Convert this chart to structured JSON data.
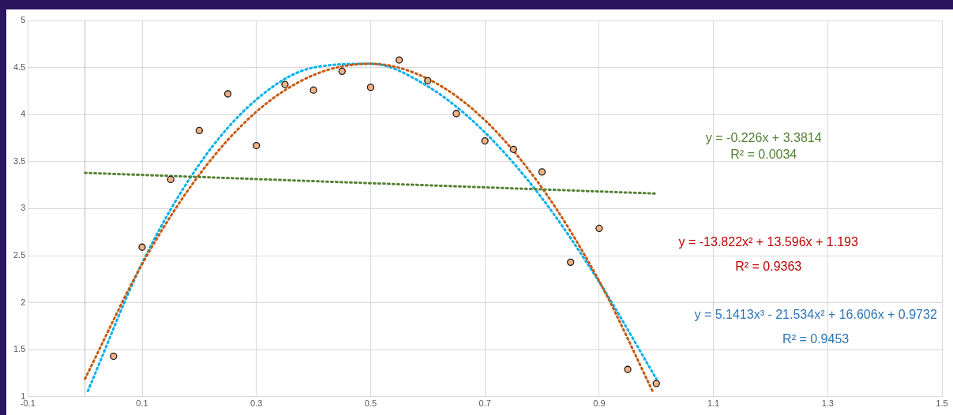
{
  "chart_data": {
    "type": "scatter",
    "xlim": [
      -0.1,
      1.5
    ],
    "xticks": [
      -0.1,
      0.1,
      0.3,
      0.5,
      0.7,
      0.9,
      1.1,
      1.3,
      1.5
    ],
    "ylim": [
      1,
      5
    ],
    "yticks": [
      1,
      1.5,
      2,
      2.5,
      3,
      3.5,
      4,
      4.5,
      5
    ],
    "grid": true,
    "legend": false,
    "marker": "circle",
    "ref_lines": [
      {
        "axis": "x",
        "value": 0,
        "color": "#c8c8c8"
      }
    ],
    "series": [
      {
        "color": "#f4b183",
        "x": [
          0.05,
          0.1,
          0.15,
          0.2,
          0.25,
          0.3,
          0.35,
          0.4,
          0.45,
          0.5,
          0.55,
          0.6,
          0.65,
          0.7,
          0.75,
          0.8,
          0.85,
          0.9,
          0.95,
          1.0
        ],
        "values": [
          1.43,
          2.59,
          3.31,
          3.83,
          4.22,
          3.67,
          4.32,
          4.26,
          4.46,
          4.29,
          4.58,
          4.36,
          4.01,
          3.72,
          3.63,
          3.39,
          2.43,
          2.79,
          1.29,
          1.14
        ]
      },
      {
        "type": "line",
        "color": "#548235",
        "line_style": "dotted",
        "marker": "none",
        "x": [
          0,
          1.0
        ],
        "values": [
          3.38,
          3.16
        ]
      },
      {
        "type": "line",
        "color": "#c55a11",
        "line_style": "dotted",
        "marker": "none",
        "x": [
          0,
          0.1,
          0.2,
          0.3,
          0.4,
          0.5,
          0.6,
          0.7,
          0.8,
          0.9,
          0.995
        ],
        "values": [
          1.19,
          2.41,
          3.36,
          4.03,
          4.42,
          4.54,
          4.38,
          3.94,
          3.22,
          2.23,
          1.04
        ]
      },
      {
        "type": "line",
        "color": "#00b0f0",
        "line_style": "dotted",
        "marker": "none",
        "x": [
          0.005,
          0.1,
          0.2,
          0.3,
          0.4,
          0.5,
          0.6,
          0.7,
          0.8,
          0.9,
          1.0
        ],
        "values": [
          1.06,
          2.42,
          3.47,
          4.16,
          4.5,
          4.54,
          4.3,
          3.81,
          3.11,
          2.22,
          1.19
        ]
      }
    ],
    "annotations": [
      "y = -0.226x + 3.3814",
      "R² = 0.0034",
      "y = -13.822x² + 13.596x + 1.193",
      "R² = 0.9363",
      "y = 5.1413x³ - 21.534x² + 16.606x + 0.9732",
      "R² = 0.9453"
    ]
  }
}
